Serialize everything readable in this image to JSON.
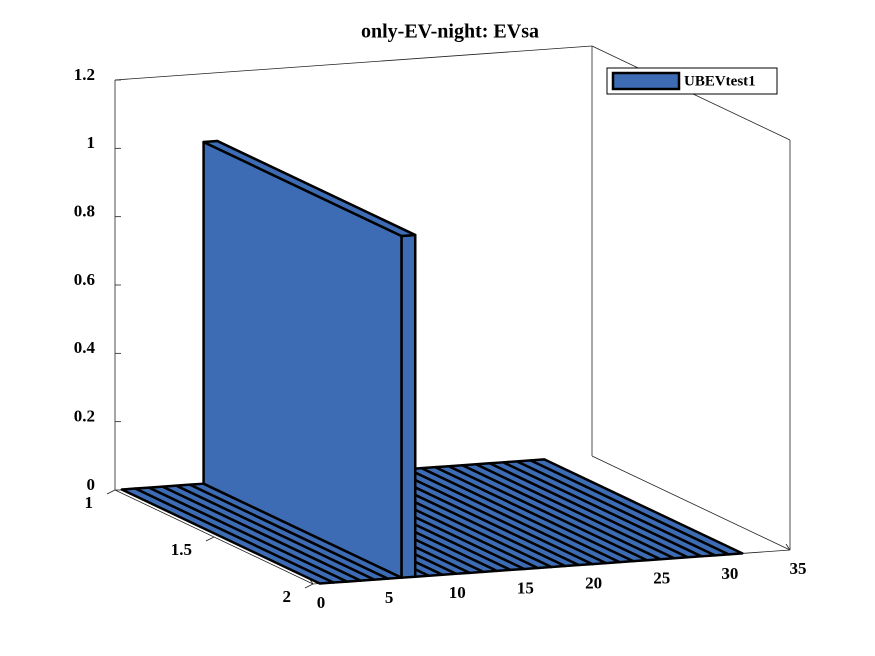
{
  "chart_data": {
    "type": "bar3",
    "title": "only-EV-night: EVsa",
    "x": [
      1,
      2,
      3,
      4,
      5,
      6,
      7,
      8,
      9,
      10,
      11,
      12,
      13,
      14,
      15,
      16,
      17,
      18,
      19,
      20,
      21,
      22,
      23,
      24,
      25,
      26,
      27,
      28,
      29,
      30,
      31
    ],
    "series": [
      {
        "name": "UBEVtest1",
        "color": "#3d6cb4",
        "values": [
          0,
          0,
          0,
          0,
          0,
          0,
          1,
          0,
          0,
          0,
          0,
          0,
          0,
          0,
          0,
          0,
          0,
          0,
          0,
          0,
          0,
          0,
          0,
          0,
          0,
          0,
          0,
          0,
          0,
          0,
          0
        ]
      }
    ],
    "xlim": [
      0,
      35
    ],
    "xticks": [
      0,
      5,
      10,
      15,
      20,
      25,
      30,
      35
    ],
    "ylim": [
      1,
      2
    ],
    "yticks": [
      1,
      1.5,
      2
    ],
    "zlim": [
      0,
      1.2
    ],
    "zticks": [
      0,
      0.2,
      0.4,
      0.6,
      0.8,
      1,
      1.2
    ],
    "legend": "northeast"
  }
}
